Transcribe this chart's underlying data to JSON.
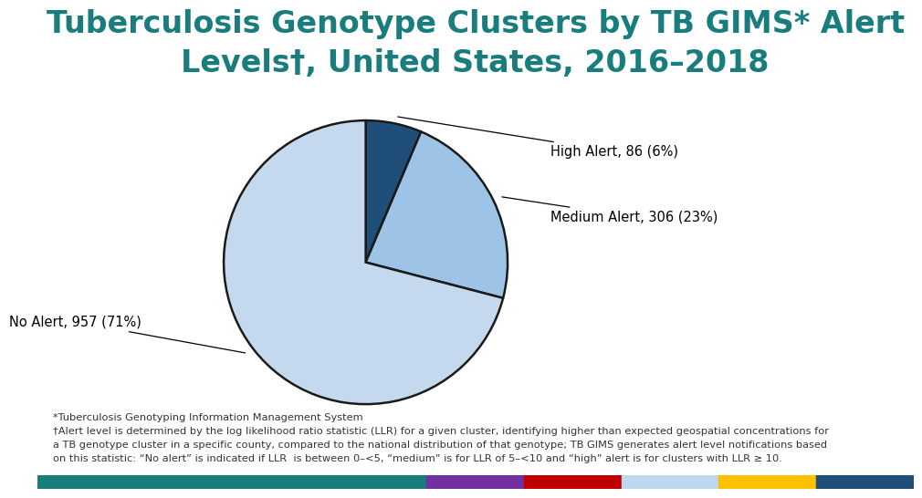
{
  "title_line1": "Tuberculosis Genotype Clusters by TB GIMS* Alert",
  "title_line2": "Levels†, United States, 2016–2018",
  "title_color": "#1a7d7d",
  "title_fontsize": 24,
  "slices": [
    86,
    306,
    957
  ],
  "labels": [
    "High Alert, 86 (6%)",
    "Medium Alert, 306 (23%)",
    "No Alert, 957 (71%)"
  ],
  "colors": [
    "#1F4E79",
    "#9DC3E6",
    "#C5D9EE"
  ],
  "edgecolor": "#1a1a1a",
  "linewidth": 1.8,
  "footnote1": "*Tuberculosis Genotyping Information Management System",
  "footnote2": "†Alert level is determined by the log likelihood ratio statistic (LLR) for a given cluster, identifying higher than expected geospatial concentrations for",
  "footnote3": "a TB genotype cluster in a specific county, compared to the national distribution of that genotype; TB GIMS generates alert level notifications based",
  "footnote4": "on this statistic: “No alert” is indicated if LLR  is between 0–<5, “medium” is for LLR of 5–<10 and “high” alert is for clusters with LLR ≥ 10.",
  "footnote_fontsize": 8.2,
  "bg_color": "#FFFFFF",
  "bottom_bar_colors": [
    "#1a7d7d",
    "#1a7d7d",
    "#1a7d7d",
    "#1a7d7d",
    "#7030A0",
    "#C00000",
    "#BDD7EE",
    "#FFC000",
    "#1F4E79"
  ],
  "label_fontsize": 10.5
}
